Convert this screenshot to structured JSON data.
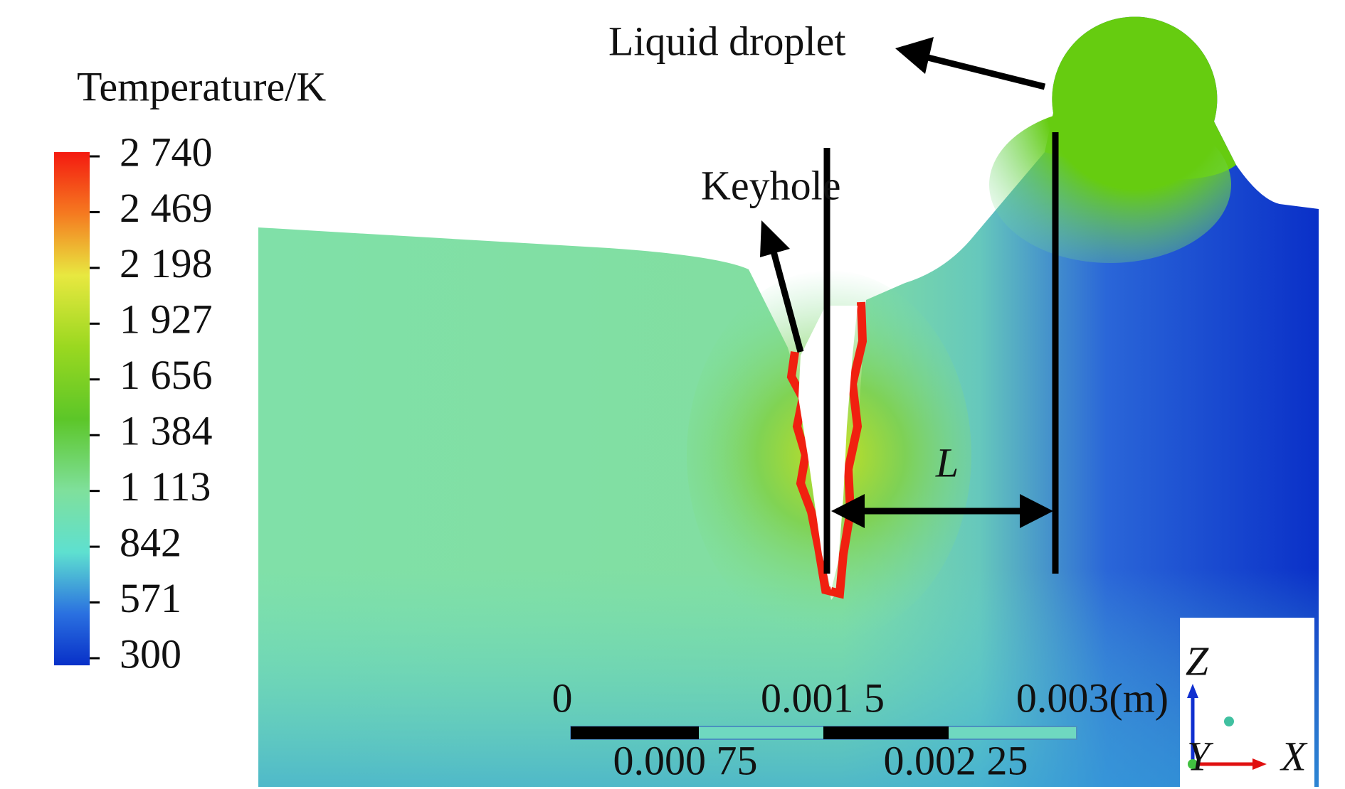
{
  "legend": {
    "title": "Temperature/K",
    "ticks": [
      "2 740",
      "2 469",
      "2 198",
      "1 927",
      "1 656",
      "1 384",
      "1 113",
      "842",
      "571",
      "300"
    ]
  },
  "annotations": {
    "droplet": "Liquid droplet",
    "keyhole": "Keyhole",
    "distance": "L"
  },
  "scale_bar": {
    "top": [
      "0",
      "0.001 5",
      "0.003(m)"
    ],
    "bottom": [
      "0.000 75",
      "0.002 25"
    ]
  },
  "axes": {
    "z": "Z",
    "y": "Y",
    "x": "X"
  }
}
